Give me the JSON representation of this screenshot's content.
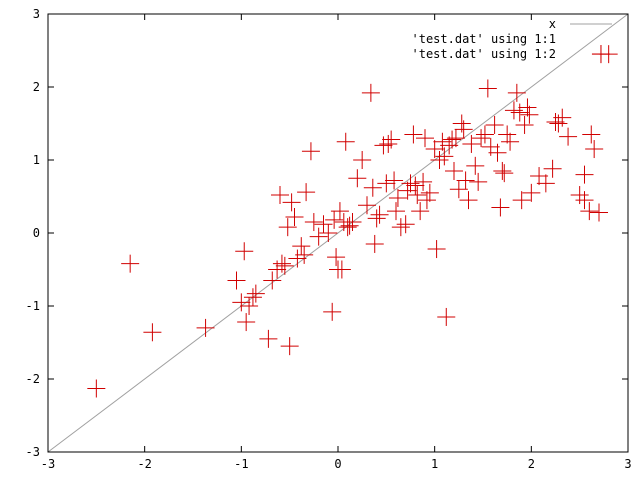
{
  "chart_data": {
    "type": "scatter",
    "title": "",
    "xlabel": "",
    "ylabel": "",
    "xlim": [
      -3,
      3
    ],
    "ylim": [
      -3,
      3
    ],
    "xticks": [
      "-3",
      "-2",
      "-1",
      "0",
      "1",
      "2",
      "3"
    ],
    "yticks": [
      "-3",
      "-2",
      "-1",
      "0",
      "1",
      "2",
      "3"
    ],
    "grid": false,
    "legend_position": "top-right",
    "series": [
      {
        "name": "x",
        "kind": "line",
        "color": "#a0a0a0",
        "points": [
          [
            -3,
            -3
          ],
          [
            3,
            3
          ]
        ]
      },
      {
        "name": "'test.dat' using 1:1",
        "kind": "points",
        "color": "#ff0000",
        "points": []
      },
      {
        "name": "'test.dat' using 1:2",
        "kind": "points",
        "marker": "plus",
        "color": "#d00000",
        "points": [
          [
            -2.5,
            -2.13
          ],
          [
            -2.15,
            -0.42
          ],
          [
            -1.92,
            -1.36
          ],
          [
            -1.37,
            -1.3
          ],
          [
            -1.05,
            -0.65
          ],
          [
            -1.0,
            -0.95
          ],
          [
            -0.97,
            -0.25
          ],
          [
            -0.95,
            -1.22
          ],
          [
            -0.92,
            -1.0
          ],
          [
            -0.88,
            -0.88
          ],
          [
            -0.85,
            -0.83
          ],
          [
            -0.72,
            -1.45
          ],
          [
            -0.68,
            -0.65
          ],
          [
            -0.63,
            -0.5
          ],
          [
            -0.6,
            0.52
          ],
          [
            -0.58,
            -0.42
          ],
          [
            -0.55,
            -0.45
          ],
          [
            -0.52,
            0.08
          ],
          [
            -0.5,
            -1.55
          ],
          [
            -0.48,
            0.42
          ],
          [
            -0.45,
            0.22
          ],
          [
            -0.42,
            -0.35
          ],
          [
            -0.38,
            -0.18
          ],
          [
            -0.35,
            -0.3
          ],
          [
            -0.33,
            0.56
          ],
          [
            -0.28,
            1.12
          ],
          [
            -0.25,
            0.15
          ],
          [
            -0.2,
            -0.05
          ],
          [
            -0.15,
            0.12
          ],
          [
            -0.1,
            0.0
          ],
          [
            -0.06,
            -1.08
          ],
          [
            -0.04,
            0.18
          ],
          [
            -0.02,
            -0.33
          ],
          [
            0.0,
            -0.5
          ],
          [
            0.02,
            0.3
          ],
          [
            0.04,
            -0.5
          ],
          [
            0.06,
            0.15
          ],
          [
            0.08,
            1.25
          ],
          [
            0.1,
            0.08
          ],
          [
            0.12,
            0.1
          ],
          [
            0.15,
            0.15
          ],
          [
            0.2,
            0.75
          ],
          [
            0.25,
            1.0
          ],
          [
            0.3,
            0.38
          ],
          [
            0.34,
            1.92
          ],
          [
            0.36,
            0.62
          ],
          [
            0.38,
            -0.15
          ],
          [
            0.4,
            0.2
          ],
          [
            0.43,
            0.25
          ],
          [
            0.47,
            1.2
          ],
          [
            0.5,
            0.68
          ],
          [
            0.52,
            1.22
          ],
          [
            0.55,
            1.28
          ],
          [
            0.58,
            0.72
          ],
          [
            0.6,
            0.3
          ],
          [
            0.62,
            0.48
          ],
          [
            0.65,
            0.08
          ],
          [
            0.7,
            0.12
          ],
          [
            0.72,
            0.58
          ],
          [
            0.75,
            0.68
          ],
          [
            0.78,
            1.35
          ],
          [
            0.8,
            0.65
          ],
          [
            0.82,
            0.52
          ],
          [
            0.85,
            0.3
          ],
          [
            0.88,
            0.7
          ],
          [
            0.9,
            1.3
          ],
          [
            0.92,
            0.45
          ],
          [
            0.95,
            0.55
          ],
          [
            1.0,
            1.15
          ],
          [
            1.02,
            -0.22
          ],
          [
            1.05,
            1.0
          ],
          [
            1.08,
            1.25
          ],
          [
            1.1,
            1.05
          ],
          [
            1.12,
            -1.15
          ],
          [
            1.15,
            1.2
          ],
          [
            1.18,
            1.28
          ],
          [
            1.2,
            0.85
          ],
          [
            1.22,
            1.3
          ],
          [
            1.25,
            0.6
          ],
          [
            1.28,
            1.5
          ],
          [
            1.3,
            1.42
          ],
          [
            1.32,
            0.72
          ],
          [
            1.35,
            0.45
          ],
          [
            1.38,
            1.22
          ],
          [
            1.42,
            0.92
          ],
          [
            1.45,
            0.7
          ],
          [
            1.48,
            1.3
          ],
          [
            1.52,
            1.35
          ],
          [
            1.55,
            1.98
          ],
          [
            1.58,
            1.18
          ],
          [
            1.62,
            1.48
          ],
          [
            1.65,
            1.1
          ],
          [
            1.68,
            0.35
          ],
          [
            1.7,
            0.85
          ],
          [
            1.72,
            0.82
          ],
          [
            1.75,
            1.35
          ],
          [
            1.78,
            1.25
          ],
          [
            1.82,
            1.68
          ],
          [
            1.85,
            1.92
          ],
          [
            1.88,
            1.65
          ],
          [
            1.9,
            0.45
          ],
          [
            1.93,
            1.48
          ],
          [
            1.96,
            1.72
          ],
          [
            1.98,
            1.62
          ],
          [
            2.0,
            0.55
          ],
          [
            2.08,
            0.78
          ],
          [
            2.15,
            0.68
          ],
          [
            2.22,
            0.88
          ],
          [
            2.25,
            1.52
          ],
          [
            2.28,
            1.5
          ],
          [
            2.32,
            1.58
          ],
          [
            2.38,
            1.32
          ],
          [
            2.5,
            0.52
          ],
          [
            2.55,
            0.45
          ],
          [
            2.55,
            0.8
          ],
          [
            2.6,
            0.3
          ],
          [
            2.62,
            1.35
          ],
          [
            2.65,
            1.15
          ],
          [
            2.7,
            0.28
          ],
          [
            2.72,
            2.45
          ],
          [
            2.8,
            2.45
          ]
        ]
      }
    ]
  }
}
